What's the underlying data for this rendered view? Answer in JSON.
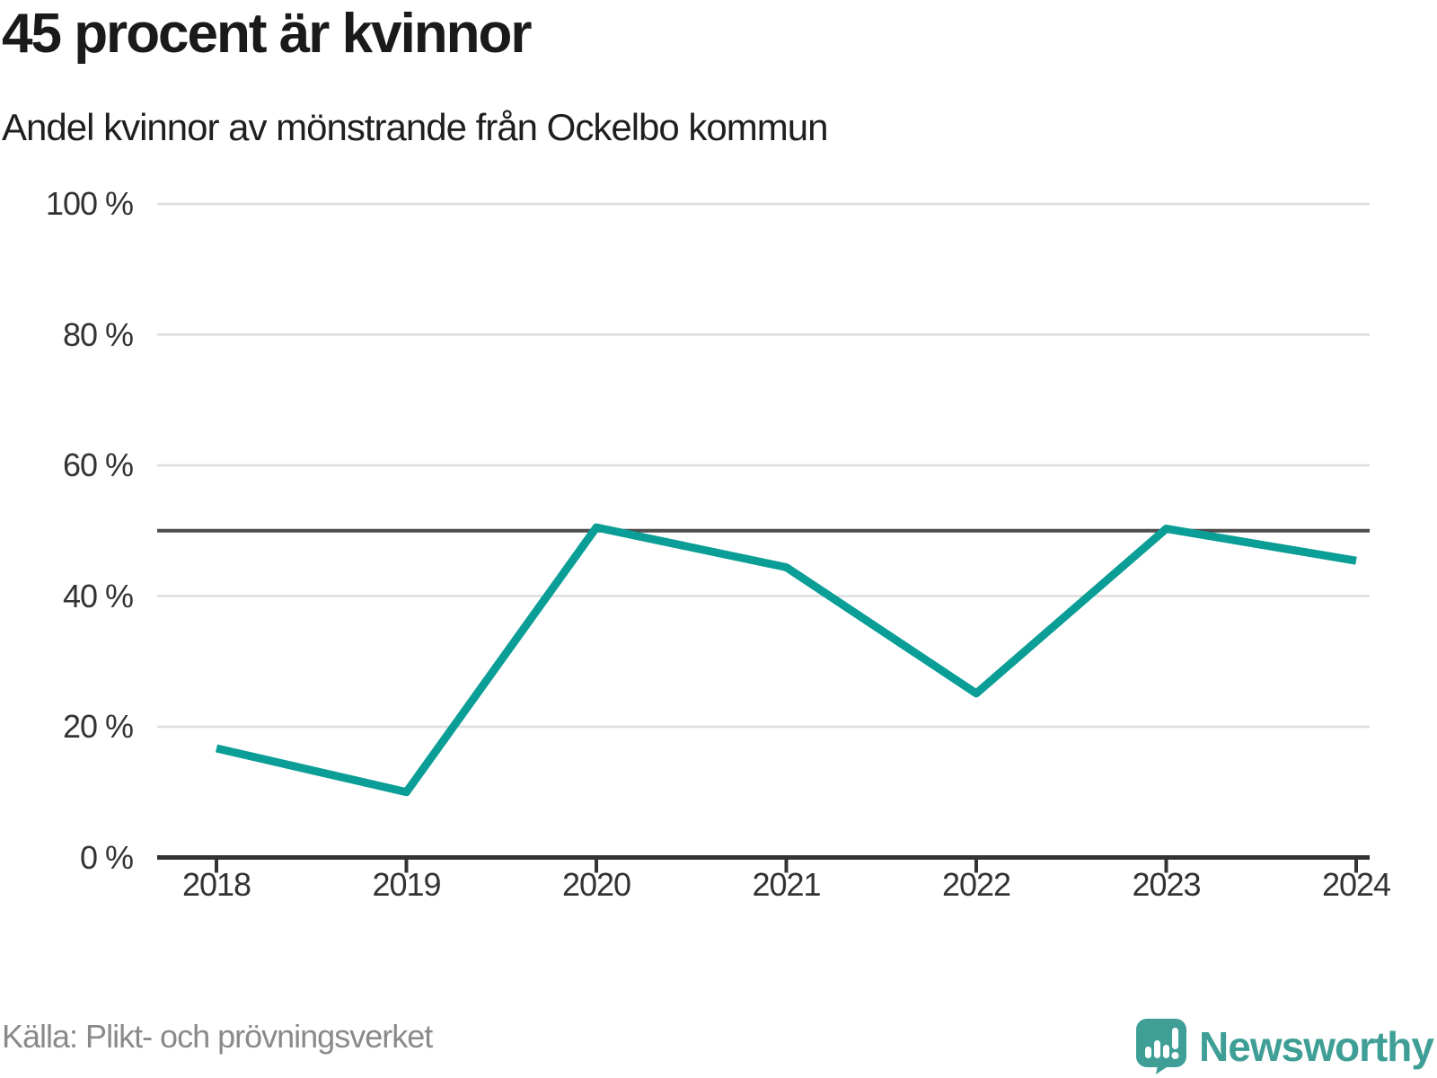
{
  "header": {
    "title": "45 procent är kvinnor",
    "subtitle": "Andel kvinnor av mönstrande från Ockelbo kommun"
  },
  "footer": {
    "source": "Källa: Plikt- och prövningsverket",
    "brand_name": "Newsworthy",
    "brand_icon": "newsworthy-speech-bubble-bar-chart-icon"
  },
  "colors": {
    "line": "#0a9e96",
    "reference_line": "#4d4d4d",
    "gridline": "#dddddd",
    "axis": "#333333",
    "title_text": "#1a1a1a",
    "tick_text": "#333333",
    "muted_text": "#8a8a8a",
    "brand_teal": "#3f9f97"
  },
  "chart_data": {
    "type": "line",
    "title": "45 procent är kvinnor",
    "subtitle": "Andel kvinnor av mönstrande från Ockelbo kommun",
    "categories": [
      "2018",
      "2019",
      "2020",
      "2021",
      "2022",
      "2023",
      "2024"
    ],
    "series": [
      {
        "name": "Andel kvinnor av mönstrande",
        "values": [
          16.7,
          10.0,
          50.5,
          44.4,
          25.1,
          50.3,
          45.4
        ]
      }
    ],
    "unit": "%",
    "ylim": [
      0,
      100
    ],
    "y_ticks": [
      0,
      20,
      40,
      60,
      80,
      100
    ],
    "y_tick_labels": [
      "0 %",
      "20 %",
      "40 %",
      "60 %",
      "80 %",
      "100 %"
    ],
    "reference_line": 50,
    "grid": "horizontal",
    "legend": "none",
    "source": "Källa: Plikt- och prövningsverket"
  }
}
